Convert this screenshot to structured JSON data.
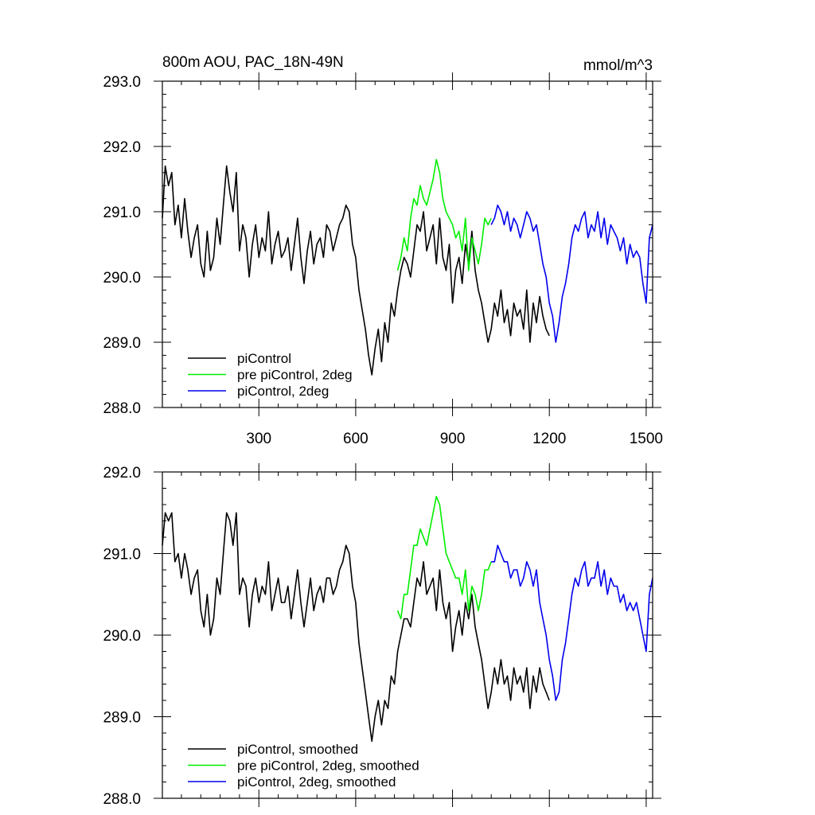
{
  "chart_data": [
    {
      "type": "line",
      "title": "800m AOU, PAC_18N-49N",
      "units": "mmol/m^3",
      "xlim": [
        1,
        1520
      ],
      "ylim": [
        288.0,
        293.0
      ],
      "x_ticks": [
        300,
        600,
        900,
        1200,
        1500
      ],
      "x_tick_labels": [
        "300",
        "600",
        "900",
        "1200",
        "1500"
      ],
      "y_ticks": [
        288,
        289,
        290,
        291,
        292,
        293
      ],
      "y_tick_labels": [
        "288.0",
        "289.0",
        "290.0",
        "291.0",
        "292.0",
        "293.0"
      ],
      "grid": false,
      "legend_position": "bottom-left",
      "series": [
        {
          "name": "piControl",
          "color": "#000000",
          "x": [
            1,
            10,
            20,
            30,
            40,
            50,
            60,
            70,
            80,
            90,
            100,
            110,
            120,
            130,
            140,
            150,
            160,
            170,
            180,
            190,
            200,
            210,
            220,
            230,
            240,
            250,
            260,
            270,
            280,
            290,
            300,
            310,
            320,
            330,
            340,
            350,
            360,
            370,
            380,
            390,
            400,
            410,
            420,
            430,
            440,
            450,
            460,
            470,
            480,
            490,
            500,
            510,
            520,
            530,
            540,
            550,
            560,
            570,
            580,
            590,
            600,
            610,
            620,
            630,
            640,
            650,
            660,
            670,
            680,
            690,
            700,
            710,
            720,
            730,
            740,
            750,
            760,
            770,
            780,
            790,
            800,
            810,
            820,
            830,
            840,
            850,
            860,
            870,
            880,
            890,
            900,
            910,
            920,
            930,
            940,
            950,
            960,
            970,
            980,
            990,
            1000,
            1010,
            1020,
            1030,
            1040,
            1050,
            1060,
            1070,
            1080,
            1090,
            1100,
            1110,
            1120,
            1130,
            1140,
            1150,
            1160,
            1170,
            1180,
            1190,
            1200
          ],
          "values": [
            290.9,
            291.7,
            291.4,
            291.6,
            290.8,
            291.1,
            290.6,
            291.2,
            290.7,
            290.3,
            290.6,
            290.8,
            290.2,
            290.0,
            290.7,
            290.1,
            290.3,
            290.9,
            290.5,
            291.1,
            291.7,
            291.3,
            291.0,
            291.6,
            290.4,
            290.8,
            290.6,
            290.0,
            290.5,
            290.8,
            290.3,
            290.6,
            290.4,
            291.0,
            290.2,
            290.5,
            290.7,
            290.3,
            290.4,
            290.6,
            290.1,
            290.5,
            290.9,
            290.3,
            289.9,
            290.4,
            290.7,
            290.2,
            290.5,
            290.6,
            290.3,
            290.8,
            290.7,
            290.4,
            290.6,
            290.8,
            290.9,
            291.1,
            291.0,
            290.5,
            290.3,
            289.8,
            289.5,
            289.2,
            288.8,
            288.5,
            288.9,
            289.2,
            288.7,
            289.3,
            289.0,
            289.6,
            289.4,
            289.8,
            290.1,
            290.3,
            290.2,
            290.0,
            290.4,
            290.8,
            290.7,
            291.0,
            290.4,
            290.6,
            290.8,
            290.2,
            290.9,
            290.3,
            290.1,
            290.5,
            289.6,
            290.1,
            290.3,
            289.9,
            290.5,
            290.2,
            290.7,
            290.1,
            289.8,
            289.6,
            289.3,
            289.0,
            289.2,
            289.6,
            289.4,
            289.8,
            289.3,
            289.5,
            289.1,
            289.6,
            289.4,
            289.5,
            289.2,
            289.8,
            289.0,
            289.6,
            289.3,
            289.7,
            289.4,
            289.2,
            289.1
          ]
        },
        {
          "name": "pre piControl, 2deg",
          "color": "#00ee00",
          "x": [
            730,
            740,
            750,
            760,
            770,
            780,
            790,
            800,
            810,
            820,
            830,
            840,
            850,
            860,
            870,
            880,
            890,
            900,
            910,
            920,
            930,
            940,
            950,
            960,
            970,
            980,
            990,
            1000,
            1010,
            1020
          ],
          "values": [
            290.1,
            290.3,
            290.6,
            290.4,
            290.9,
            291.2,
            291.1,
            291.4,
            291.2,
            291.1,
            291.3,
            291.5,
            291.8,
            291.6,
            291.2,
            291.0,
            290.9,
            290.8,
            290.6,
            290.7,
            290.4,
            290.9,
            290.1,
            290.6,
            290.4,
            290.2,
            290.5,
            290.9,
            290.8,
            290.9
          ]
        },
        {
          "name": "piControl, 2deg",
          "color": "#0000ee",
          "x": [
            1020,
            1030,
            1040,
            1050,
            1060,
            1070,
            1080,
            1090,
            1100,
            1110,
            1120,
            1130,
            1140,
            1150,
            1160,
            1170,
            1180,
            1190,
            1200,
            1210,
            1220,
            1230,
            1240,
            1250,
            1260,
            1270,
            1280,
            1290,
            1300,
            1310,
            1320,
            1330,
            1340,
            1350,
            1360,
            1370,
            1380,
            1390,
            1400,
            1410,
            1420,
            1430,
            1440,
            1450,
            1460,
            1470,
            1480,
            1490,
            1500,
            1510,
            1520
          ],
          "values": [
            290.8,
            290.9,
            291.1,
            291.0,
            290.8,
            291.0,
            290.7,
            290.9,
            290.8,
            290.6,
            290.8,
            291.0,
            290.9,
            290.7,
            290.8,
            290.5,
            290.2,
            290.0,
            289.6,
            289.4,
            289.0,
            289.3,
            289.7,
            289.9,
            290.2,
            290.6,
            290.8,
            290.7,
            290.9,
            291.0,
            290.6,
            290.8,
            290.7,
            291.0,
            290.6,
            290.9,
            290.5,
            290.8,
            290.7,
            290.6,
            290.4,
            290.6,
            290.2,
            290.5,
            290.3,
            290.4,
            290.3,
            289.9,
            289.6,
            290.6,
            290.8
          ]
        }
      ]
    },
    {
      "type": "line",
      "xlim": [
        1,
        1520
      ],
      "ylim": [
        288.0,
        292.0
      ],
      "x_ticks": [
        300,
        600,
        900,
        1200,
        1500
      ],
      "y_ticks": [
        288,
        289,
        290,
        291,
        292
      ],
      "y_tick_labels": [
        "288.0",
        "289.0",
        "290.0",
        "291.0",
        "292.0"
      ],
      "grid": false,
      "legend_position": "bottom-left",
      "series": [
        {
          "name": "piControl, smoothed",
          "color": "#000000",
          "x": [
            1,
            10,
            20,
            30,
            40,
            50,
            60,
            70,
            80,
            90,
            100,
            110,
            120,
            130,
            140,
            150,
            160,
            170,
            180,
            190,
            200,
            210,
            220,
            230,
            240,
            250,
            260,
            270,
            280,
            290,
            300,
            310,
            320,
            330,
            340,
            350,
            360,
            370,
            380,
            390,
            400,
            410,
            420,
            430,
            440,
            450,
            460,
            470,
            480,
            490,
            500,
            510,
            520,
            530,
            540,
            550,
            560,
            570,
            580,
            590,
            600,
            610,
            620,
            630,
            640,
            650,
            660,
            670,
            680,
            690,
            700,
            710,
            720,
            730,
            740,
            750,
            760,
            770,
            780,
            790,
            800,
            810,
            820,
            830,
            840,
            850,
            860,
            870,
            880,
            890,
            900,
            910,
            920,
            930,
            940,
            950,
            960,
            970,
            980,
            990,
            1000,
            1010,
            1020,
            1030,
            1040,
            1050,
            1060,
            1070,
            1080,
            1090,
            1100,
            1110,
            1120,
            1130,
            1140,
            1150,
            1160,
            1170,
            1180,
            1190,
            1200
          ],
          "values": [
            291.1,
            291.5,
            291.4,
            291.5,
            290.9,
            291.0,
            290.7,
            291.0,
            290.8,
            290.5,
            290.7,
            290.8,
            290.3,
            290.1,
            290.5,
            290.0,
            290.2,
            290.7,
            290.5,
            291.0,
            291.5,
            291.4,
            291.1,
            291.5,
            290.5,
            290.7,
            290.6,
            290.1,
            290.5,
            290.7,
            290.4,
            290.6,
            290.5,
            290.9,
            290.3,
            290.5,
            290.7,
            290.4,
            290.4,
            290.6,
            290.2,
            290.5,
            290.8,
            290.4,
            290.1,
            290.4,
            290.7,
            290.3,
            290.5,
            290.6,
            290.4,
            290.7,
            290.7,
            290.5,
            290.6,
            290.8,
            290.9,
            291.1,
            291.0,
            290.6,
            290.4,
            289.9,
            289.6,
            289.3,
            289.0,
            288.7,
            289.0,
            289.2,
            288.9,
            289.2,
            289.1,
            289.5,
            289.4,
            289.8,
            290.0,
            290.2,
            290.2,
            290.1,
            290.4,
            290.7,
            290.6,
            290.9,
            290.5,
            290.6,
            290.7,
            290.3,
            290.8,
            290.4,
            290.2,
            290.4,
            289.8,
            290.1,
            290.3,
            290.0,
            290.4,
            290.2,
            290.5,
            290.1,
            289.9,
            289.7,
            289.4,
            289.1,
            289.3,
            289.6,
            289.4,
            289.7,
            289.4,
            289.5,
            289.2,
            289.6,
            289.4,
            289.5,
            289.3,
            289.6,
            289.1,
            289.5,
            289.3,
            289.6,
            289.4,
            289.3,
            289.2
          ]
        },
        {
          "name": "pre piControl, 2deg, smoothed",
          "color": "#00ee00",
          "x": [
            730,
            740,
            750,
            760,
            770,
            780,
            790,
            800,
            810,
            820,
            830,
            840,
            850,
            860,
            870,
            880,
            890,
            900,
            910,
            920,
            930,
            940,
            950,
            960,
            970,
            980,
            990,
            1000,
            1010,
            1020
          ],
          "values": [
            290.3,
            290.2,
            290.5,
            290.5,
            290.8,
            291.1,
            291.1,
            291.3,
            291.2,
            291.1,
            291.3,
            291.5,
            291.7,
            291.6,
            291.3,
            291.0,
            290.9,
            290.8,
            290.7,
            290.7,
            290.5,
            290.8,
            290.3,
            290.6,
            290.5,
            290.3,
            290.5,
            290.8,
            290.8,
            290.9
          ]
        },
        {
          "name": "piControl, 2deg, smoothed",
          "color": "#0000ee",
          "x": [
            1020,
            1030,
            1040,
            1050,
            1060,
            1070,
            1080,
            1090,
            1100,
            1110,
            1120,
            1130,
            1140,
            1150,
            1160,
            1170,
            1180,
            1190,
            1200,
            1210,
            1220,
            1230,
            1240,
            1250,
            1260,
            1270,
            1280,
            1290,
            1300,
            1310,
            1320,
            1330,
            1340,
            1350,
            1360,
            1370,
            1380,
            1390,
            1400,
            1410,
            1420,
            1430,
            1440,
            1450,
            1460,
            1470,
            1480,
            1490,
            1500,
            1510,
            1520
          ],
          "values": [
            290.9,
            290.9,
            291.1,
            291.0,
            290.9,
            290.9,
            290.7,
            290.8,
            290.8,
            290.6,
            290.7,
            290.9,
            290.8,
            290.6,
            290.8,
            290.4,
            290.2,
            290.0,
            289.7,
            289.5,
            289.2,
            289.3,
            289.7,
            289.9,
            290.2,
            290.5,
            290.7,
            290.6,
            290.8,
            290.9,
            290.6,
            290.7,
            290.7,
            290.9,
            290.6,
            290.8,
            290.5,
            290.7,
            290.6,
            290.6,
            290.4,
            290.5,
            290.3,
            290.4,
            290.3,
            290.4,
            290.2,
            290.0,
            289.8,
            290.5,
            290.7
          ]
        }
      ]
    }
  ]
}
